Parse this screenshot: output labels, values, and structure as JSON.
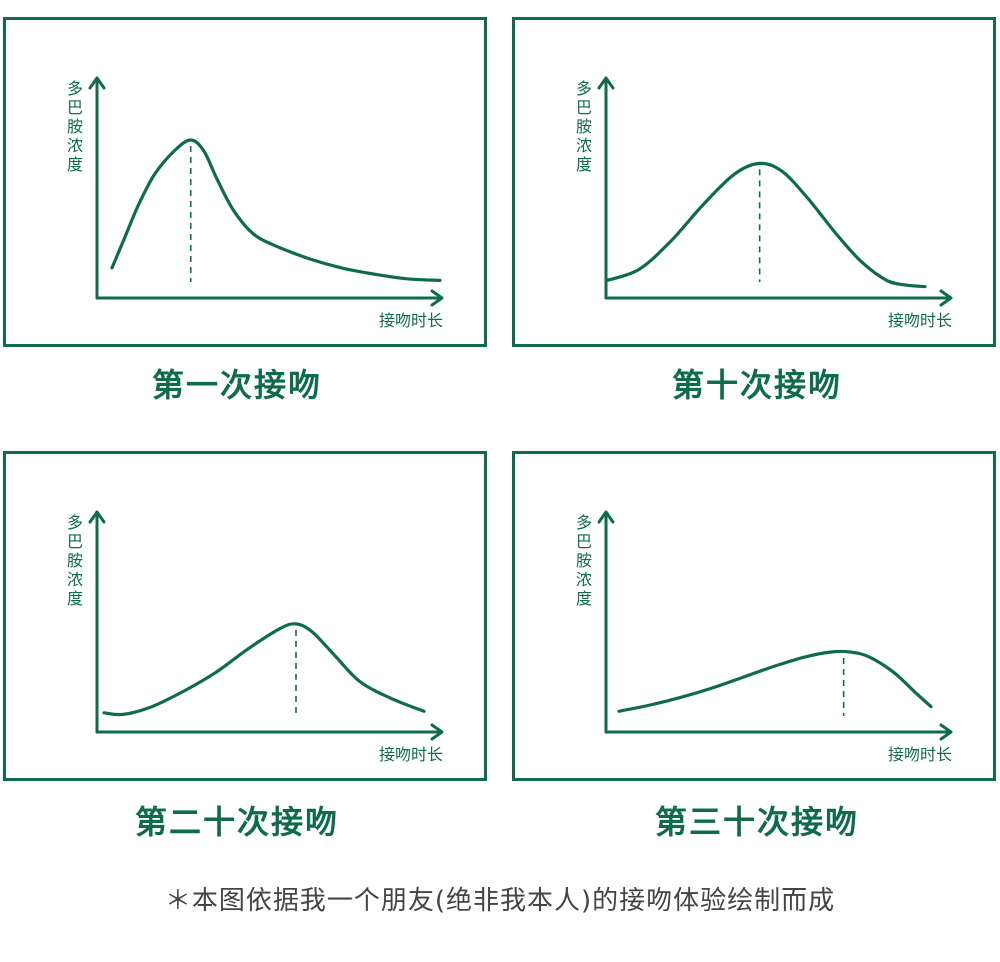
{
  "chart_data": [
    {
      "type": "line",
      "ylabel": "多巴胺浓度",
      "xlabel": "接吻时长",
      "caption": "第一次接吻",
      "x": [
        0,
        0.04,
        0.08,
        0.13,
        0.19,
        0.24,
        0.28,
        0.32,
        0.37,
        0.43,
        0.5,
        0.6,
        0.7,
        0.8,
        0.9,
        1.0
      ],
      "y": [
        0.18,
        0.38,
        0.58,
        0.78,
        0.93,
        1.0,
        0.93,
        0.75,
        0.55,
        0.4,
        0.32,
        0.24,
        0.18,
        0.14,
        0.11,
        0.1
      ],
      "peak_x": 0.24
    },
    {
      "type": "line",
      "ylabel": "多巴胺浓度",
      "xlabel": "接吻时长",
      "caption": "第十次接吻",
      "x": [
        0,
        0.1,
        0.2,
        0.3,
        0.4,
        0.48,
        0.55,
        0.63,
        0.72,
        0.8,
        0.88,
        0.94,
        1.0
      ],
      "y": [
        0.1,
        0.17,
        0.35,
        0.58,
        0.78,
        0.85,
        0.8,
        0.63,
        0.4,
        0.22,
        0.1,
        0.07,
        0.06
      ],
      "peak_x": 0.48
    },
    {
      "type": "line",
      "ylabel": "多巴胺浓度",
      "xlabel": "接吻时长",
      "caption": "第二十次接吻",
      "x": [
        0,
        0.06,
        0.15,
        0.25,
        0.35,
        0.45,
        0.55,
        0.6,
        0.65,
        0.72,
        0.8,
        0.9,
        1.0
      ],
      "y": [
        0.11,
        0.1,
        0.15,
        0.25,
        0.37,
        0.52,
        0.65,
        0.68,
        0.63,
        0.48,
        0.31,
        0.2,
        0.12
      ],
      "peak_x": 0.6
    },
    {
      "type": "line",
      "ylabel": "多巴胺浓度",
      "xlabel": "接吻时长",
      "caption": "第三十次接吻",
      "x": [
        0,
        0.1,
        0.2,
        0.3,
        0.4,
        0.5,
        0.6,
        0.68,
        0.74,
        0.8,
        0.88,
        0.95,
        1.0
      ],
      "y": [
        0.12,
        0.16,
        0.21,
        0.27,
        0.34,
        0.41,
        0.47,
        0.5,
        0.5,
        0.47,
        0.37,
        0.24,
        0.15
      ],
      "peak_x": 0.72
    }
  ],
  "footnote": "＊本图依据我一个朋友(绝非我本人)的接吻体验绘制而成",
  "colors": {
    "accent": "#0e6b4e",
    "footnote": "#444444"
  }
}
